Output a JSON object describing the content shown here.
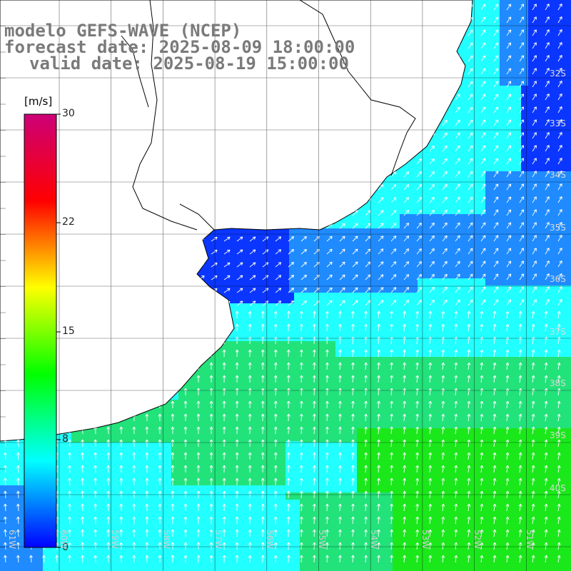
{
  "title": {
    "line1": "modelo GEFS-WAVE (NCEP)",
    "line2": "forecast date: 2025-08-09 18:00:00",
    "line3": "valid date: 2025-08-19 15:00:00"
  },
  "colorbar": {
    "unit": "[m/s]",
    "ticks": [
      "30",
      "22",
      "15",
      "8",
      "0"
    ],
    "range": [
      0,
      30
    ],
    "colors": [
      "#0000ff",
      "#00ffff",
      "#00ff00",
      "#ffff00",
      "#ff0000",
      "#cc0077"
    ]
  },
  "map": {
    "latitude_labels": [
      "32S",
      "33S",
      "34S",
      "35S",
      "36S",
      "37S",
      "38S",
      "39S",
      "40S"
    ],
    "longitude_labels": [
      "61W",
      "60W",
      "59W",
      "58W",
      "57W",
      "56W",
      "55W",
      "54W",
      "53W",
      "52W",
      "51W"
    ],
    "ocean_colors": {
      "calm": "#0a36ff",
      "light": "#1f8bff",
      "moderate": "#22ffff",
      "fresh": "#22e27a",
      "strong": "#1ae81a"
    },
    "land_color": "#ffffff",
    "grid_color": "#000000",
    "arrow_color": "#ffffff"
  }
}
